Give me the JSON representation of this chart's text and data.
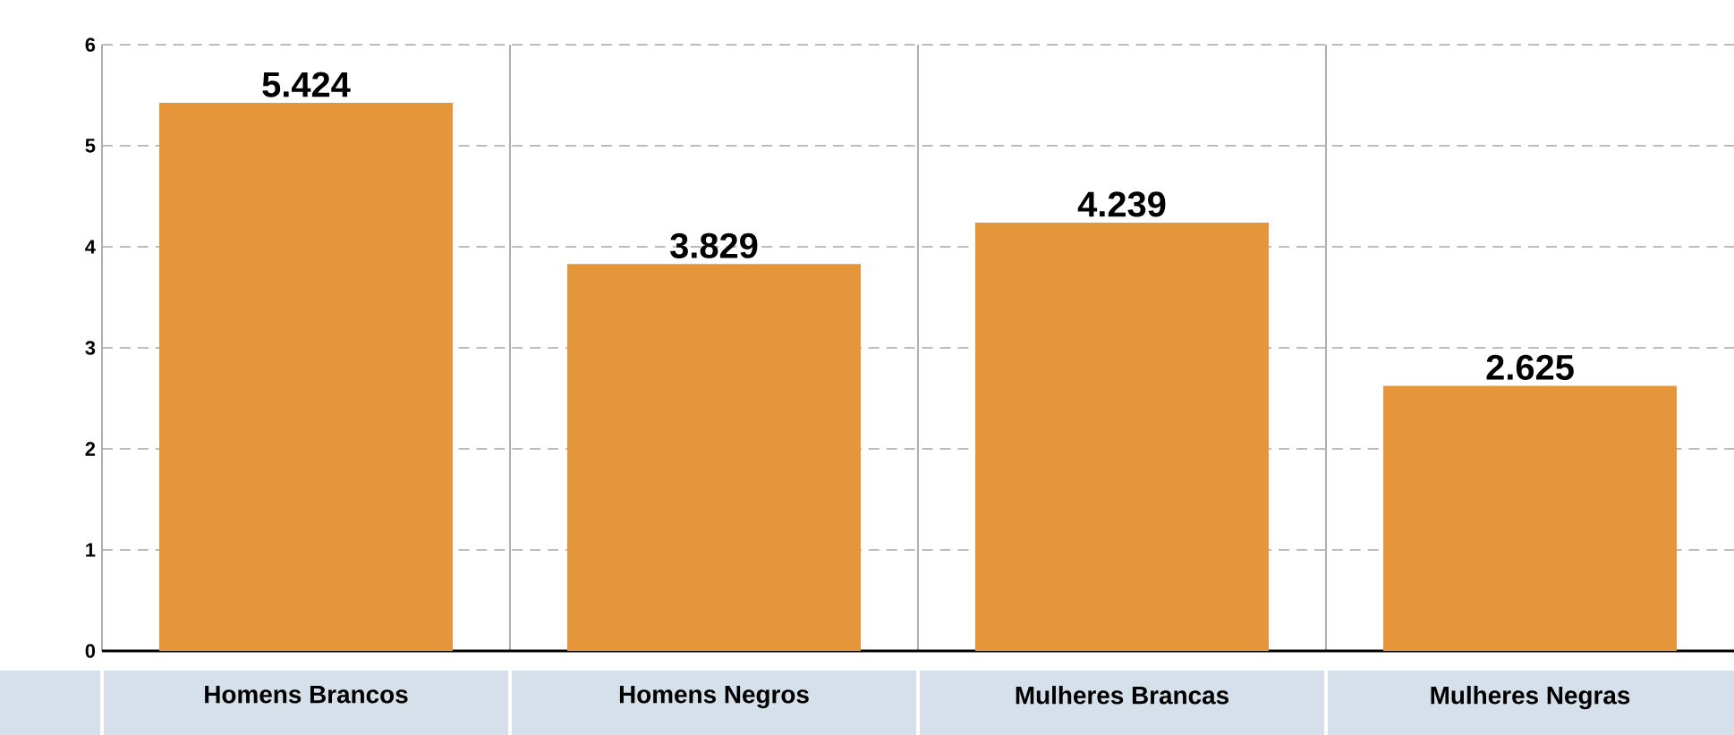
{
  "chart_data": {
    "type": "bar",
    "categories": [
      "Homens Brancos",
      "Homens Negros",
      "Mulheres Brancas",
      "Mulheres Negras"
    ],
    "values": [
      5.424,
      3.829,
      4.239,
      2.625
    ],
    "value_labels": [
      "5.424",
      "3.829",
      "4.239",
      "2.625"
    ],
    "color": "#e5963a",
    "ylim": [
      0,
      6
    ],
    "yticks": [
      0,
      1,
      2,
      3,
      4,
      5,
      6
    ],
    "grid": true
  }
}
